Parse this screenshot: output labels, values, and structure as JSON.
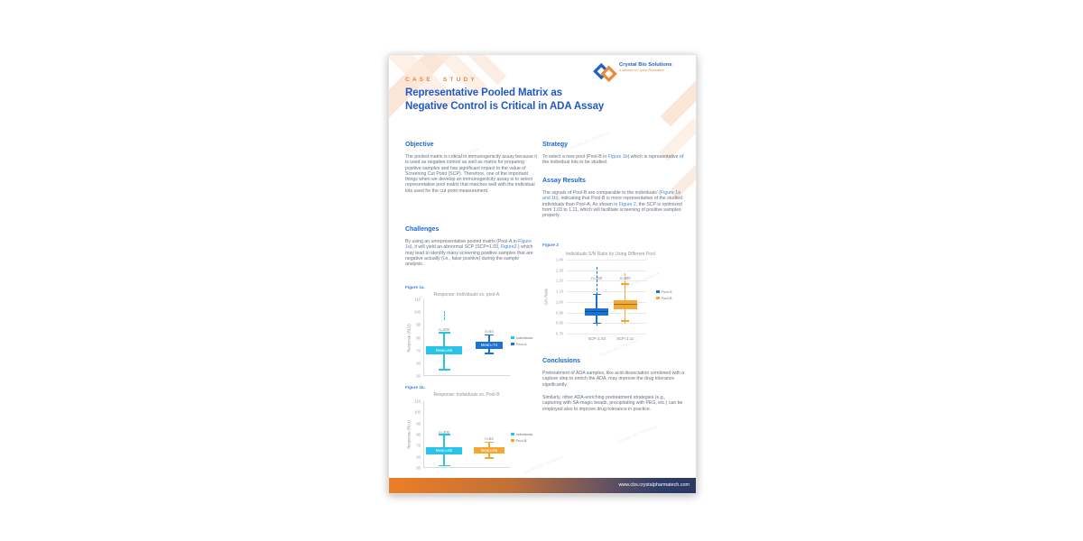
{
  "page": {
    "eyebrow": "CASE STUDY",
    "title_lines": [
      "Representative Pooled Matrix as",
      "Negative Control is Critical in ADA Assay"
    ],
    "logo": {
      "name": "Crystal Bio Solutions",
      "tagline": "A Member of Crystal Pharmatech"
    },
    "footer_url": "www.cbs.crystalpharmatech.com",
    "watermark": "Crystal Bio Solutions"
  },
  "colors": {
    "title_blue": "#2356c7",
    "heading_blue": "#1c66d4",
    "link_blue": "#4a86e8",
    "eyebrow_orange": "#f0813a",
    "body_gray": "#68727e",
    "series_cyan": "#29c3e8",
    "series_blue": "#1a73d4",
    "series_orange": "#f5a733",
    "footer_gradient_left": "#ed7d26",
    "footer_gradient_right": "#2b3864"
  },
  "sections": {
    "objective": {
      "heading": "Objective",
      "body": "The pooled matrix is critical in immunogenicity assay because it is used as negative control as well as matrix for preparing positive samples and has significant impact to the value of Screening Cut Point (SCP). Therefore, one of the important things when we develop an immunogenicity assay is to select representative pool matrix that matches well with the individual lots used for the cut point measurement."
    },
    "challenges": {
      "heading": "Challenges",
      "segments": [
        {
          "t": "By using an unrepresentative pooled matrix (Pool-A in ",
          "link": false
        },
        {
          "t": "Figure 1a",
          "link": true
        },
        {
          "t": "), it will yield an abnormal SCP (SCP=1.03, ",
          "link": false
        },
        {
          "t": "Figure2.",
          "link": true
        },
        {
          "t": ") which may lead to identify many screening positive samples that are negative actually (i.e., false positive) during the sample analysis.",
          "link": false
        }
      ]
    },
    "strategy": {
      "heading": "Strategy",
      "segments": [
        {
          "t": "To select a new pool (Pool-B in ",
          "link": false
        },
        {
          "t": "Figure 1b",
          "link": true
        },
        {
          "t": ") which is representative of the individual lots to be studied.",
          "link": false
        }
      ]
    },
    "assay_results": {
      "heading": "Assay Results",
      "segments": [
        {
          "t": "The signals of Pool-B are comparable to the individuals' (",
          "link": false
        },
        {
          "t": "Figure 1a and 1b",
          "link": true
        },
        {
          "t": "), indicating that Pool-B is more representative of the studied individuals than Pool-A, As shown in ",
          "link": false
        },
        {
          "t": "Figure 2",
          "link": true
        },
        {
          "t": ", the SCP is optimized from 1.03 to 1.11, which will facilitate screening of positive samples properly.",
          "link": false
        }
      ]
    },
    "conclusions": {
      "heading": "Conclusions",
      "paragraphs": [
        "Pretreatment of ADA samples, like acid dissociation combined with a capture step to enrich the ADA, may improve the drug tolerance significantly.",
        "Similarly, other ADA-enriching pretreatment strategies (e.g., capturing with SA-magic beads, precipitating with PEG, etc.) can be employed also to improve drug tolerance in practice."
      ]
    }
  },
  "figures": {
    "fig1a_label": "Figure 1a.",
    "fig1b_label": "Figure 1b.",
    "fig2_label": "Figure 2"
  },
  "chart_data": [
    {
      "id": "fig1a",
      "type": "box",
      "title": "Response: Individuals vs. pool-A",
      "ylabel": "Response (RLU)",
      "ylim": [
        50,
        110
      ],
      "yticks": [
        "110",
        "100",
        "90",
        "80",
        "70",
        "60",
        "50"
      ],
      "grid": false,
      "legend_position": "right",
      "series": [
        {
          "name": "Individuals",
          "color": "#29c3e8",
          "n_label": "n=300",
          "n_y": 86.5,
          "whisker_low": 55,
          "whisker_high": 84,
          "box_low": 67,
          "box_high": 73,
          "mean": 69,
          "mean_label": "Mean=69",
          "outlier_range_high": [
            94,
            101
          ]
        },
        {
          "name": "Pool-A",
          "color": "#1a73d4",
          "n_label": "n=54",
          "n_y": 85,
          "whisker_low": 67.5,
          "whisker_high": 82,
          "box_low": 71,
          "box_high": 77,
          "mean": 74,
          "mean_label": "Mean=74"
        }
      ]
    },
    {
      "id": "fig1b",
      "type": "box",
      "title": "Response: Individuals vs. Pool-B",
      "ylabel": "Response (RLU)",
      "ylim": [
        50,
        110
      ],
      "yticks": [
        "110",
        "100",
        "90",
        "80",
        "70",
        "60",
        "50"
      ],
      "grid": false,
      "legend_position": "right",
      "series": [
        {
          "name": "Individuals",
          "color": "#29c3e8",
          "n_label": "n=300",
          "n_y": 82,
          "whisker_low": 52,
          "whisker_high": 80,
          "box_low": 62,
          "box_high": 68.5,
          "mean": 65,
          "mean_label": "Mean=65"
        },
        {
          "name": "Pool-B",
          "color": "#f5a733",
          "n_label": "n=54",
          "n_y": 76,
          "whisker_low": 59,
          "whisker_high": 73,
          "box_low": 63,
          "box_high": 69,
          "mean": 66,
          "mean_label": "Mean=66"
        }
      ]
    },
    {
      "id": "fig2",
      "type": "box",
      "title": "Individuals S/N Ratio by Using Different Pool",
      "ylabel": "S/N Ratio",
      "ylim": [
        0.7,
        1.4
      ],
      "yticks": [
        "1.40",
        "1.30",
        "1.20",
        "1.10",
        "1.00",
        "0.90",
        "0.80",
        "0.70"
      ],
      "grid": true,
      "legend_position": "right",
      "series": [
        {
          "name": "Pool-A",
          "color": "#1a73d4",
          "n_label": "n=300",
          "n_y": 1.225,
          "whisker_low": 0.8,
          "whisker_high": 1.07,
          "box_low": 0.87,
          "box_high": 0.935,
          "median": 0.91,
          "x_label": "SCP=1.03",
          "outlier_range_high": [
            1.07,
            1.33
          ],
          "outlier_range_low": [
            0.775,
            0.8
          ]
        },
        {
          "name": "Pool-B",
          "color": "#f5a733",
          "n_label": "n=300",
          "n_y": 1.225,
          "whisker_low": 0.82,
          "whisker_high": 1.17,
          "box_low": 0.93,
          "box_high": 1.02,
          "median": 0.975,
          "x_label": "SCP=1.11",
          "outlier_range_high": [
            1.17,
            1.27
          ],
          "outlier_range_low": [
            0.79,
            0.82
          ]
        }
      ]
    }
  ]
}
